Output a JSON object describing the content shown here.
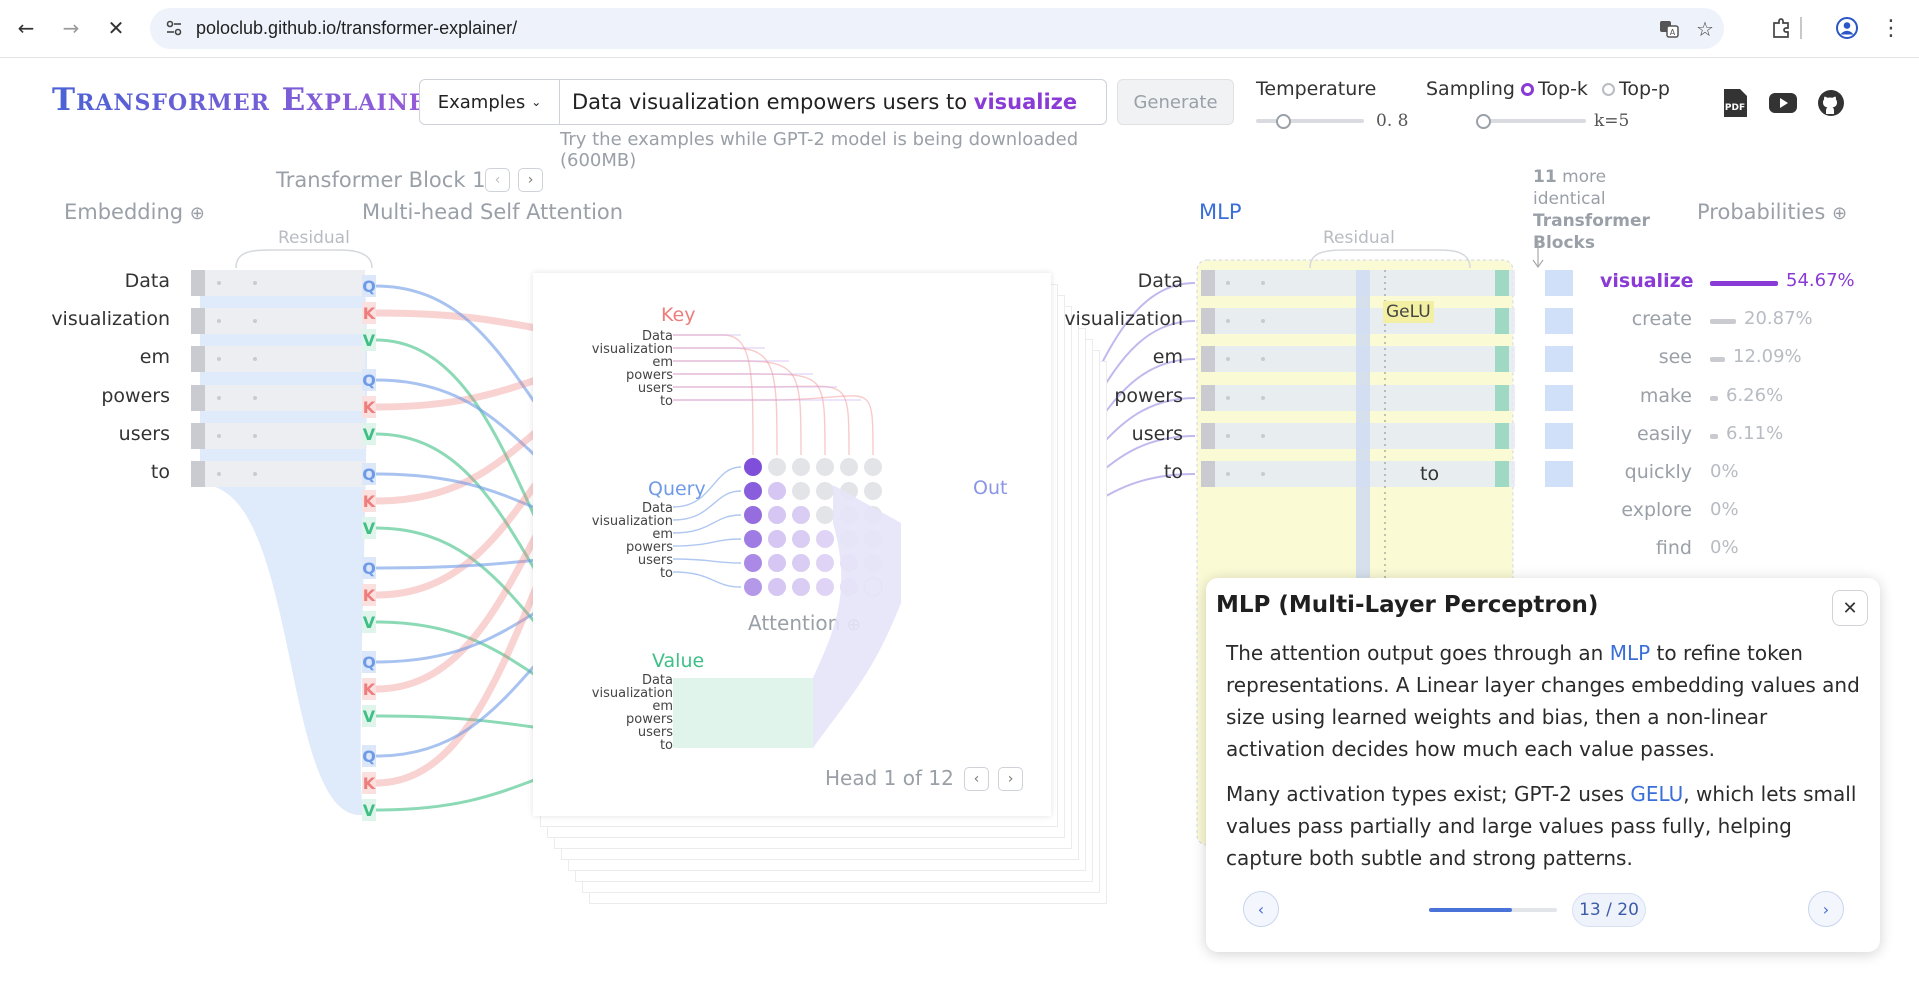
{
  "browser": {
    "url": "poloclub.github.io/transformer-explainer/"
  },
  "header": {
    "title": "Transformer Explainer",
    "examples_label": "Examples",
    "prompt_plain": "Data visualization empowers users to ",
    "prompt_highlight": "visualize",
    "generate_label": "Generate",
    "hint": "Try the examples while GPT-2 model is being downloaded (600MB)",
    "temperature_label": "Temperature",
    "temperature_value": "0. 8",
    "temperature_level": 0.25,
    "sampling_label": "Sampling",
    "sampling_options": [
      "Top-k",
      "Top-p"
    ],
    "sampling_selected": "Top-k",
    "k_value": "k=5",
    "k_level": 0.05
  },
  "sections": {
    "block_title": "Transformer Block 1",
    "embedding": "Embedding",
    "mhsa": "Multi-head Self Attention",
    "residual": "Residual",
    "mlp": "MLP",
    "more_blocks_count": "11",
    "more_blocks_text": " more identical",
    "more_blocks_bold": "Transformer Blocks",
    "probabilities": "Probabilities"
  },
  "tokens": [
    "Data",
    "visualization",
    "em",
    "powers",
    "users",
    "to"
  ],
  "attention": {
    "key": "Key",
    "query": "Query",
    "value": "Value",
    "out": "Out",
    "attention_label": "Attention",
    "head_label": "Head 1 of 12",
    "qkv_letters": [
      "Q",
      "K",
      "V"
    ]
  },
  "mlp": {
    "gelu": "GeLU",
    "last_token": "to"
  },
  "probabilities": [
    {
      "word": "visualize",
      "pct": "54.67%",
      "value": 54.67
    },
    {
      "word": "create",
      "pct": "20.87%",
      "value": 20.87
    },
    {
      "word": "see",
      "pct": "12.09%",
      "value": 12.09
    },
    {
      "word": "make",
      "pct": "6.26%",
      "value": 6.26
    },
    {
      "word": "easily",
      "pct": "6.11%",
      "value": 6.11
    },
    {
      "word": "quickly",
      "pct": "0%",
      "value": 0
    },
    {
      "word": "explore",
      "pct": "0%",
      "value": 0
    },
    {
      "word": "find",
      "pct": "0%",
      "value": 0
    }
  ],
  "tooltip": {
    "title": "MLP (Multi-Layer Perceptron)",
    "p1_a": "The attention output goes through an ",
    "p1_link": "MLP",
    "p1_b": " to refine token representations. A Linear layer changes embedding values and size using learned weights and bias, then a non-linear activation decides how much each value passes.",
    "p2_a": "Many activation types exist; GPT-2 uses ",
    "p2_link": "GELU",
    "p2_b": ", which lets small values pass partially and large values pass fully, helping capture both subtle and strong patterns.",
    "page": "13 / 20",
    "progress": 0.65
  },
  "colors": {
    "accent_purple": "#8a3bd6",
    "query_blue": "#6f9be6",
    "key_red": "#ee7d7d",
    "value_green": "#3fbf86",
    "mlp_highlight": "#f6f6b4",
    "link_blue": "#3b6fd8"
  }
}
